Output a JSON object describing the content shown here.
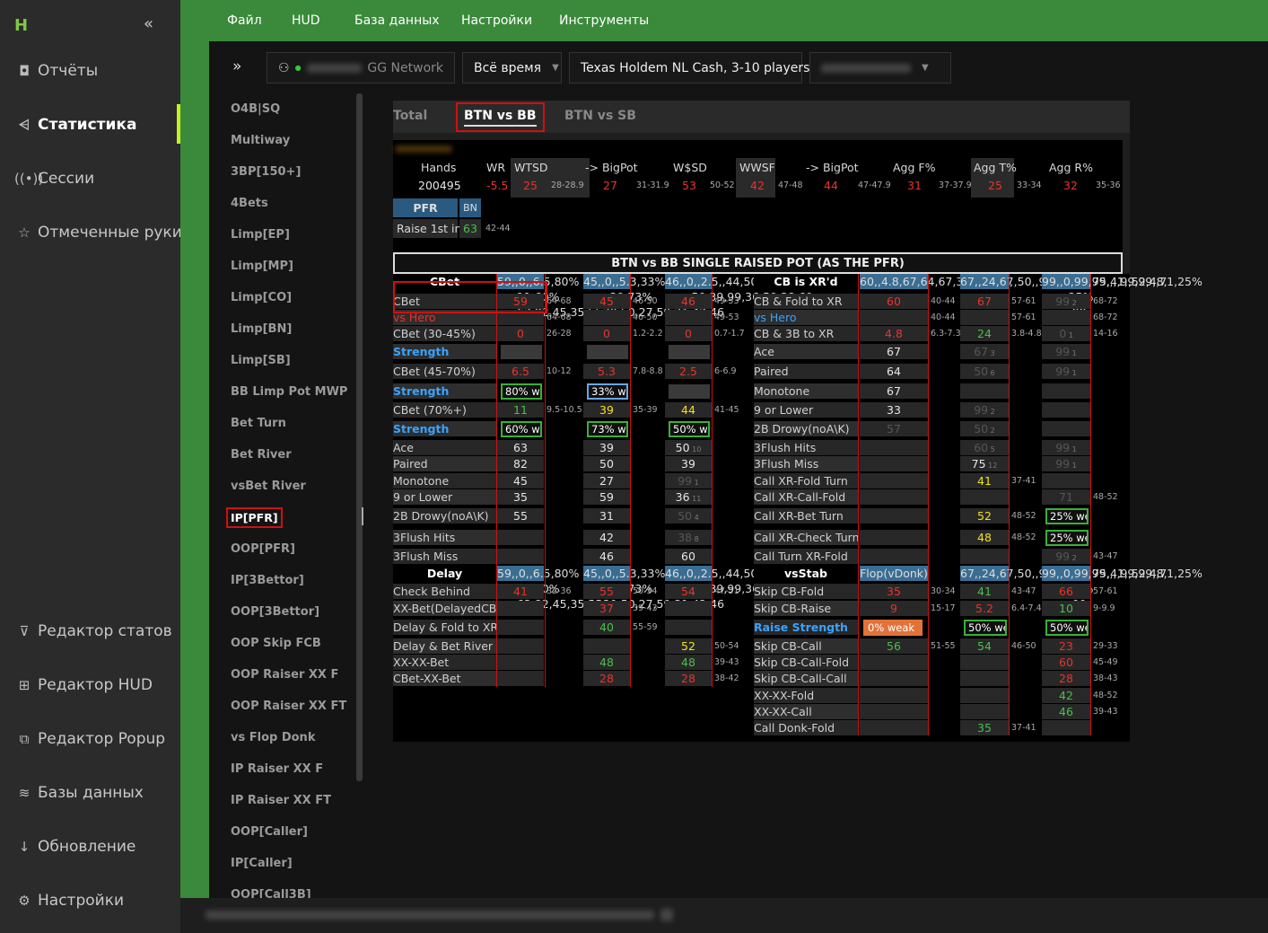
{
  "sidebar": {
    "logo": "H",
    "collapse": "«",
    "items": [
      {
        "icon": "◘",
        "label": "Отчёты"
      },
      {
        "icon": "⩤",
        "label": "Статистика"
      },
      {
        "icon": "((•))",
        "label": "Сессии"
      },
      {
        "icon": "☆",
        "label": "Отмеченные руки"
      },
      {
        "icon": "⊽",
        "label": "Редактор статов"
      },
      {
        "icon": "⊞",
        "label": "Редактор HUD"
      },
      {
        "icon": "⧉",
        "label": "Редактор Popup"
      },
      {
        "icon": "≋",
        "label": "Базы данных"
      },
      {
        "icon": "↓",
        "label": "Обновление"
      },
      {
        "icon": "⚙",
        "label": "Настройки"
      }
    ]
  },
  "menu": [
    "Файл",
    "HUD",
    "База данных",
    "Настройки",
    "Инструменты"
  ],
  "filters": {
    "expand": "»",
    "network": "GG Network",
    "period": "Всё время",
    "game": "Texas Holdem NL Cash, 3-10 players"
  },
  "stat_list": [
    "O4B|SQ",
    "Multiway",
    "3BP[150+]",
    "4Bets",
    "Limp[EP]",
    "Limp[MP]",
    "Limp[CO]",
    "Limp[BN]",
    "Limp[SB]",
    "BB Limp Pot MWP",
    "Bet Turn",
    "Bet River",
    "vsBet River",
    "IP[PFR]",
    "OOP[PFR]",
    "IP[3Bettor]",
    "OOP[3Bettor]",
    "OOP Skip FCB",
    "OOP Raiser XX F",
    "OOP Raiser XX FT",
    "vs Flop Donk",
    "IP Raiser XX F",
    "IP Raiser XX FT",
    "OOP[Caller]",
    "IP[Caller]",
    "OOP[Call3B]"
  ],
  "tabs": [
    "Total",
    "BTN vs BB",
    "BTN vs SB"
  ],
  "header": {
    "labels": [
      "Hands",
      "WR",
      "WTSD",
      "-> BigPot",
      "W$SD",
      "WWSF",
      "-> BigPot",
      "Agg F%",
      "Agg T%",
      "Agg R%"
    ],
    "values": [
      "200495",
      "-5.5",
      "25",
      "27",
      "53",
      "42",
      "44",
      "31",
      "25",
      "32"
    ],
    "ranges": [
      "28-28.9",
      "31-31.9",
      "50-52",
      "47-48",
      "47-47.9",
      "37-37.9",
      "33-34",
      "35-36"
    ],
    "pfr": "PFR",
    "bn": "BN",
    "raise_label": "Raise 1st in",
    "raise_value": "63",
    "raise_range": "42-44"
  },
  "srp_title": "BTN vs BB SINGLE RAISED POT (AS THE PFR)",
  "left_col": {
    "cbet_head": "CBet",
    "flop": [
      "59",
      "",
      "0",
      "",
      "6.5",
      "80% we",
      "11",
      "60% we",
      "63",
      "82",
      "45",
      "35",
      "55",
      "",
      ""
    ],
    "turn": [
      "45",
      "",
      "0",
      "",
      "5.3",
      "33% wea",
      "39",
      "73% we",
      "39",
      "50",
      "27",
      "59",
      "31",
      "42",
      "46"
    ],
    "river": [
      "46",
      "",
      "0",
      "",
      "2.5",
      "",
      "44",
      "50% wea",
      "50",
      "39",
      "99",
      "36",
      "50",
      "38",
      "60"
    ],
    "delay_head": "Delay",
    "rows": [
      "CBet",
      "vs Hero",
      "CBet (30-45%)",
      "Strength",
      "CBet (45-70%)",
      "Strength",
      "CBet (70%+)",
      "Strength",
      "Ace",
      "Paired",
      "Monotone",
      "9 or Lower",
      "2B Drowy(noA\\K)",
      "3Flush Hits",
      "3Flush Miss"
    ],
    "delay_rows": [
      "Check Behind",
      "XX-Bet(DelayedCB)",
      "Delay & Fold to XR",
      "Delay & Bet River",
      "XX-XX-Bet",
      "CBet-XX-Bet"
    ],
    "flop_r": [
      "64-68",
      "64-68",
      "26-28",
      "",
      "10-12",
      "",
      "9.5-10.5",
      "",
      "",
      "",
      "",
      "",
      "",
      "",
      ""
    ],
    "turn_r": [
      "46-50",
      "46-50",
      "1.2-2.2",
      "",
      "7.8-8.8",
      "",
      "35-39",
      "",
      "",
      "",
      "",
      "",
      "",
      "",
      ""
    ],
    "river_sub": [
      "",
      "",
      "",
      "",
      "",
      "",
      "",
      "",
      "10",
      "",
      "1",
      "11",
      "4",
      "8",
      ""
    ],
    "river_r": [
      "49-53",
      "49-53",
      "0.7-1.7",
      "",
      "6-6.9",
      "",
      "41-45",
      "",
      "",
      "",
      "",
      "",
      "",
      "",
      ""
    ],
    "d_flop": [
      "41",
      "",
      "",
      "",
      "",
      ""
    ],
    "d_flop_r": [
      "32-36",
      "",
      "",
      "",
      "",
      ""
    ],
    "d_turn": [
      "55",
      "37",
      "40",
      "",
      "48",
      "28"
    ],
    "d_turn_r": [
      "50-54",
      "39-43",
      "55-59",
      "",
      "",
      ""
    ],
    "d_river": [
      "54",
      "",
      "",
      "52",
      "48",
      "28"
    ],
    "d_river_r": [
      "47-51",
      "",
      "",
      "50-54",
      "39-43",
      "38-42"
    ]
  },
  "right_col": {
    "head": "CB is XR'd",
    "flop": [
      "60",
      "",
      "4.8",
      "67",
      "64",
      "67",
      "33",
      "57",
      "",
      "",
      "",
      "",
      "",
      "",
      ""
    ],
    "turn": [
      "67",
      "",
      "24",
      "67",
      "50",
      "",
      "99",
      "50",
      "60",
      "75",
      "41",
      "",
      "52",
      "48",
      ""
    ],
    "river": [
      "99",
      "",
      "0",
      "99",
      "99",
      "",
      "",
      "",
      "99",
      "99",
      "",
      "71",
      "25% wea",
      "25% wea",
      "99"
    ],
    "rows": [
      "CB & Fold to XR",
      "vs Hero",
      "CB & 3B to XR",
      "Ace",
      "Paired",
      "Monotone",
      "9 or Lower",
      "2B Drowy(noA\\K)",
      "3Flush Hits",
      "3Flush Miss",
      "Call XR-Fold Turn",
      "Call XR-Call-Fold",
      "Call XR-Bet Turn",
      "Call XR-Check Turn",
      "Call Turn XR-Fold"
    ],
    "flop_r": [
      "40-44",
      "40-44",
      "6.3-7.3",
      "",
      "",
      "",
      "",
      "",
      "",
      "",
      "",
      "",
      "",
      "",
      ""
    ],
    "turn_sub": [
      "",
      "",
      "",
      "3",
      "6",
      "",
      "2",
      "2",
      "5",
      "12",
      "",
      "",
      "",
      "",
      ""
    ],
    "turn_r": [
      "57-61",
      "57-61",
      "3.8-4.8",
      "",
      "",
      "",
      "",
      "",
      "",
      "",
      "37-41",
      "",
      "48-52",
      "48-52",
      ""
    ],
    "river_sub": [
      "2",
      "",
      "1",
      "1",
      "1",
      "",
      "",
      "",
      "1",
      "1",
      "",
      "",
      "",
      "",
      "2"
    ],
    "river_r": [
      "68-72",
      "68-72",
      "14-16",
      "",
      "",
      "",
      "",
      "",
      "",
      "",
      "",
      "48-52",
      "",
      "",
      "43-47"
    ],
    "vs_head": "vsStab",
    "flop_v": "Flop(vDonk)",
    "vs_rows": [
      "Skip CB-Fold",
      "Skip CB-Raise",
      "Raise Strength",
      "Skip CB-Call",
      "Skip CB-Call-Fold",
      "Skip CB-Call-Call",
      "XX-XX-Fold",
      "XX-XX-Call",
      "Call Donk-Fold"
    ],
    "v_flop": [
      "35",
      "9",
      "0% weak",
      "56",
      "",
      "",
      "",
      "",
      ""
    ],
    "v_flop_r": [
      "30-34",
      "15-17",
      "",
      "51-55",
      "",
      "",
      "",
      "",
      ""
    ],
    "v_turn": [
      "41",
      "5.2",
      "50% we",
      "54",
      "",
      "",
      "",
      "",
      "35"
    ],
    "v_turn_r": [
      "43-47",
      "6.4-7.4",
      "",
      "46-50",
      "",
      "",
      "",
      "",
      "37-41"
    ],
    "v_river": [
      "66",
      "10",
      "50% wea",
      "23",
      "60",
      "28",
      "42",
      "46",
      ""
    ],
    "v_river_r": [
      "57-61",
      "9-9.9",
      "",
      "29-33",
      "45-49",
      "38-43",
      "48-52",
      "39-43",
      ""
    ]
  }
}
